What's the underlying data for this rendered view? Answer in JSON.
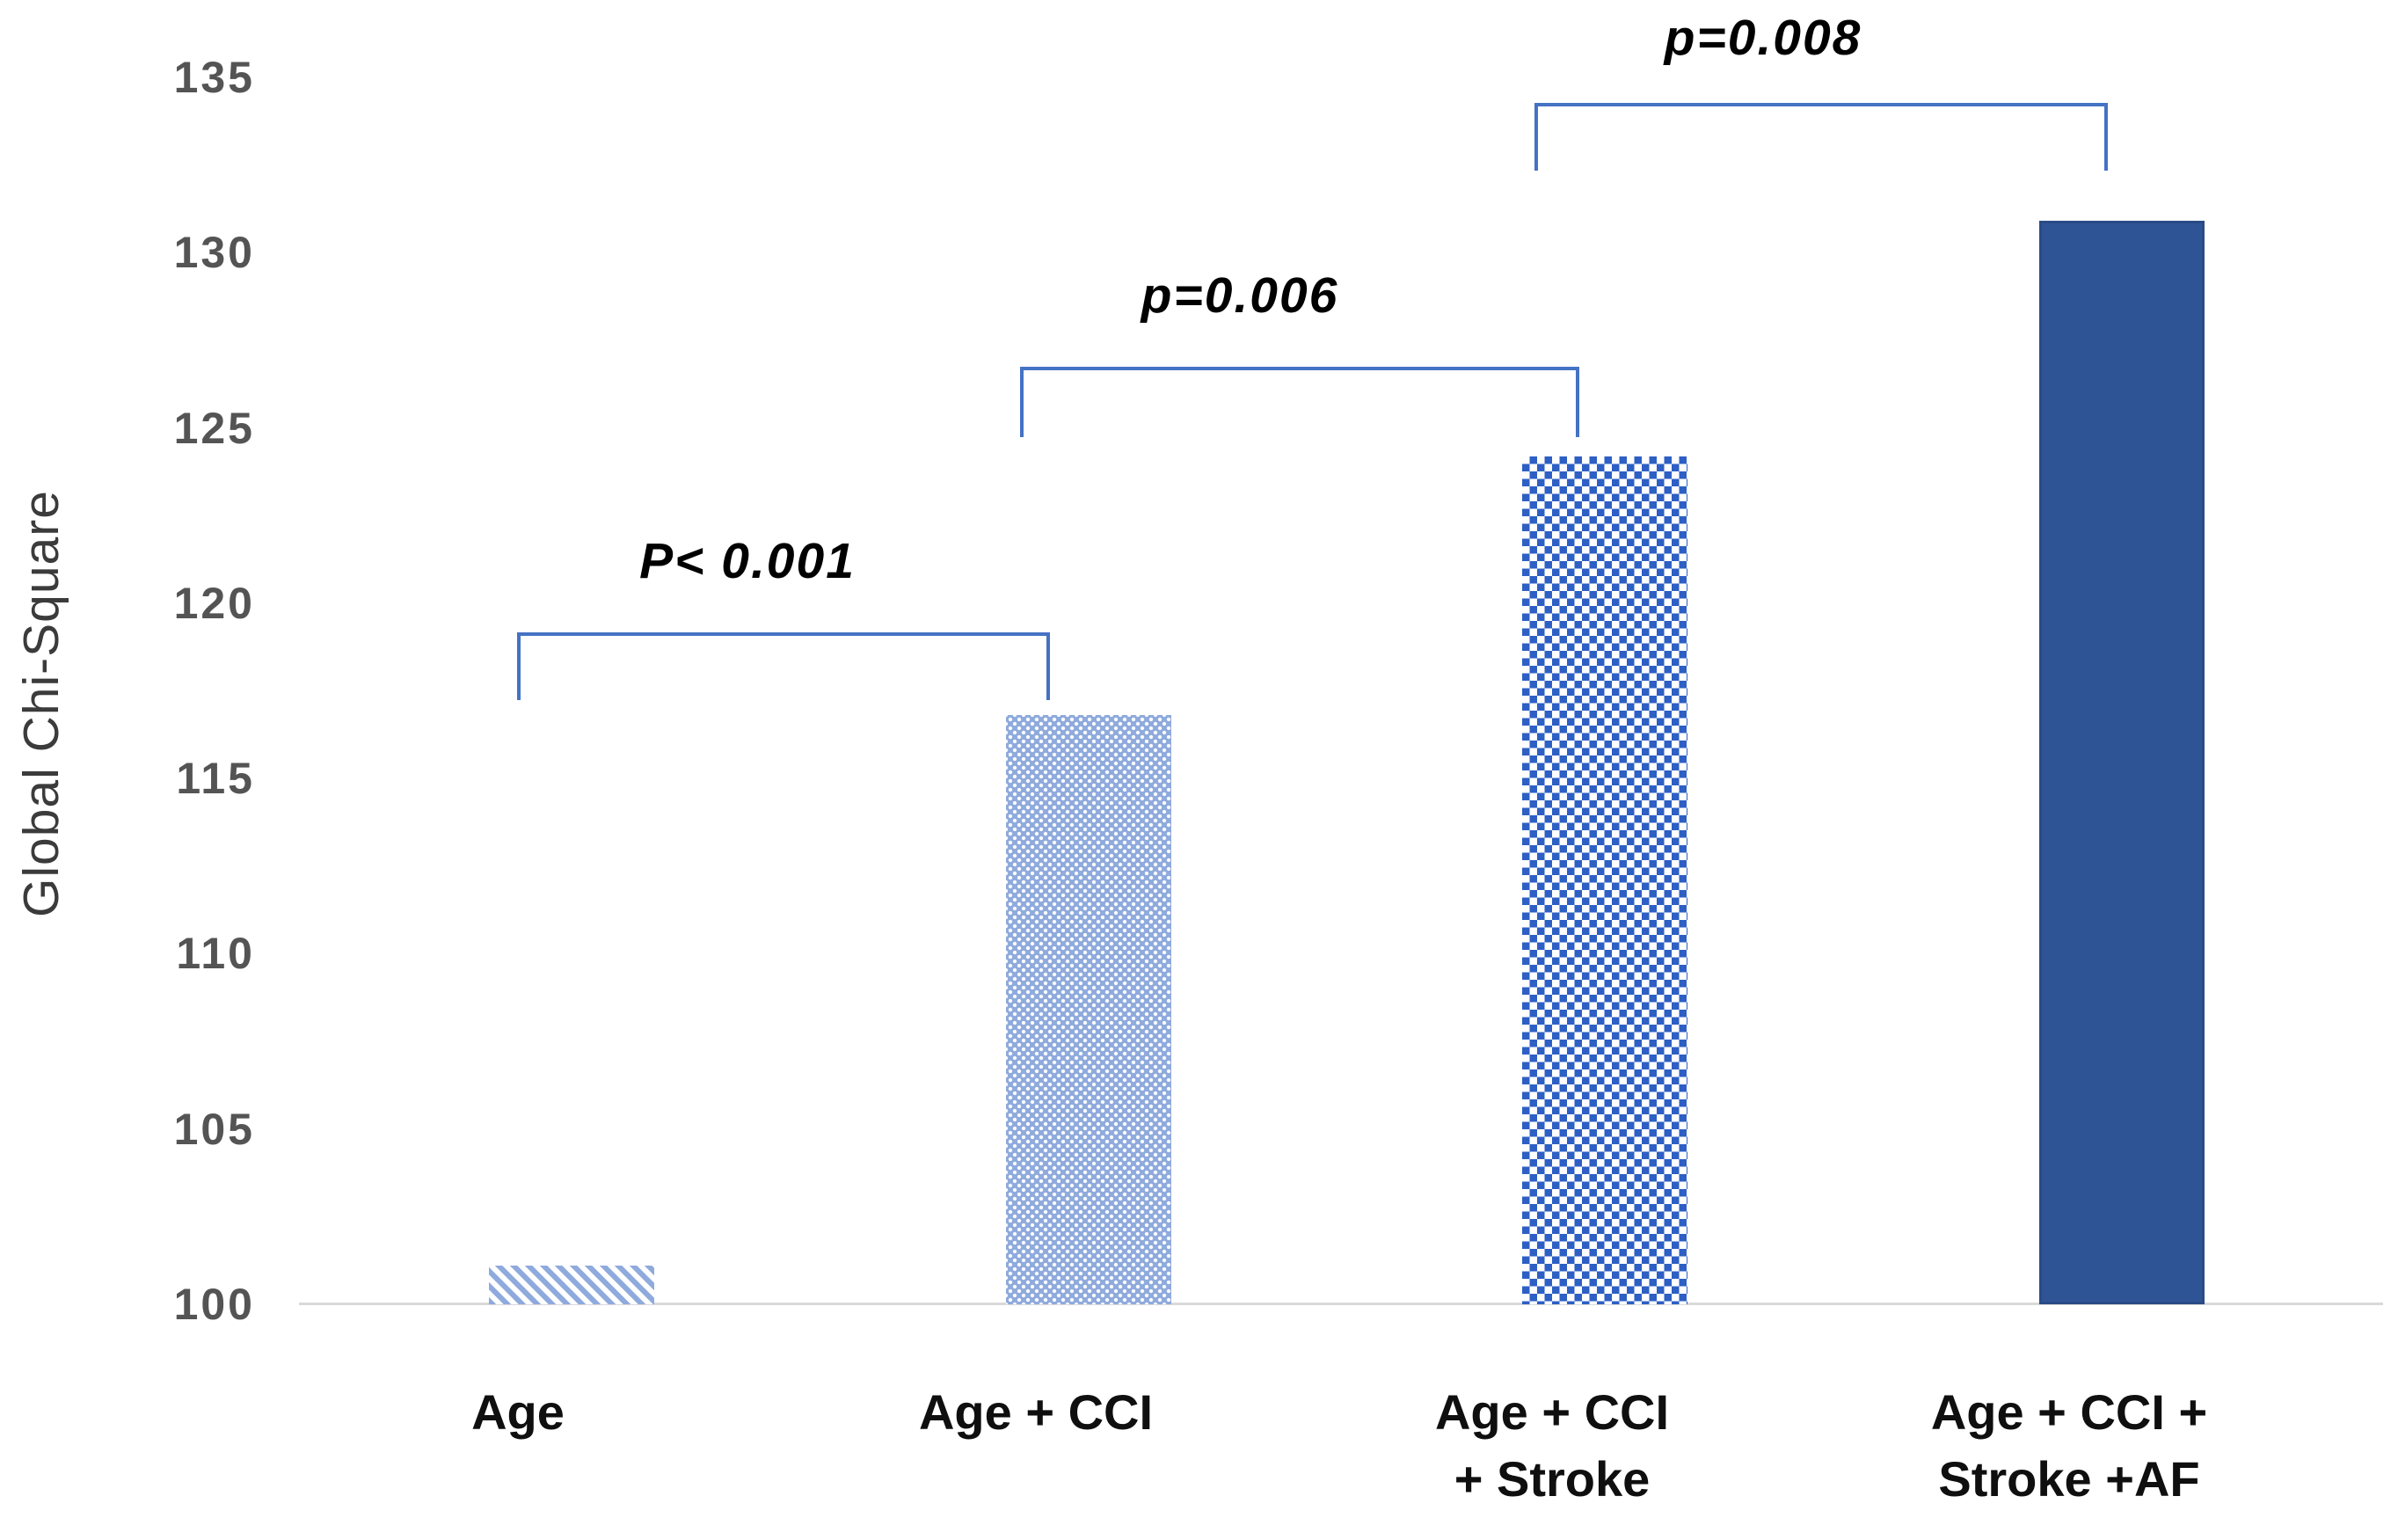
{
  "figure": {
    "y_axis_title": "Global Chi-Square"
  },
  "chart_data": {
    "type": "bar",
    "title": "",
    "xlabel": "",
    "ylabel": "Global Chi-Square",
    "ylim": [
      100,
      135
    ],
    "y_ticks": [
      "135",
      "130",
      "125",
      "120",
      "115",
      "110",
      "105",
      "100"
    ],
    "grid": false,
    "legend": false,
    "categories": [
      "Age",
      "Age + CCI",
      "Age + CCI + Stroke",
      "Age + CCI + Stroke +AF"
    ],
    "category_lines": [
      [
        "Age"
      ],
      [
        "Age + CCI"
      ],
      [
        "Age + CCI",
        "+ Stroke"
      ],
      [
        "Age + CCI +",
        "Stroke +AF"
      ]
    ],
    "values": [
      101.1,
      116.8,
      124.2,
      130.9
    ],
    "bar_styles": [
      "diagonal-stripes-light-blue",
      "dots-light-blue",
      "checkerboard-medium-blue",
      "solid-dark-blue"
    ],
    "annotations": [
      {
        "label": "P< 0.001",
        "between": [
          "Age",
          "Age + CCI"
        ]
      },
      {
        "label": "p=0.006",
        "between": [
          "Age + CCI",
          "Age + CCI + Stroke"
        ]
      },
      {
        "label": "p=0.008",
        "between": [
          "Age + CCI + Stroke",
          "Age + CCI + Stroke +AF"
        ]
      }
    ],
    "colors": {
      "light_blue": "#8FAADC",
      "checker_blue": "#2D5FC4",
      "dark_blue": "#2F5496",
      "bracket_blue": "#4472C4",
      "axis_line": "#D9D9D9",
      "tick_label": "#545454",
      "category_label": "#0F0F0F",
      "annotation_text": "#000000"
    }
  }
}
